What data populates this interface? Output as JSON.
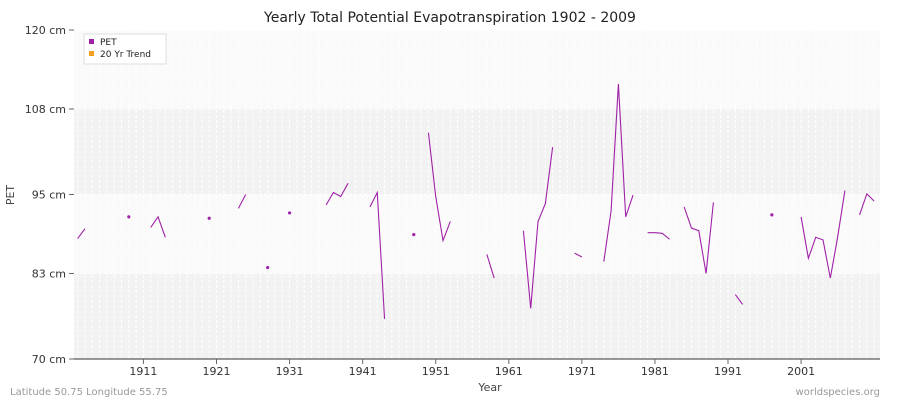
{
  "chart_data": {
    "type": "line",
    "title": "Yearly Total Potential Evapotranspiration 1902 - 2009",
    "xlabel": "Year",
    "ylabel": "PET",
    "xlim": [
      1902,
      2009
    ],
    "ylim": [
      70,
      120
    ],
    "y_ticks": [
      {
        "value": 70,
        "label": "70 cm"
      },
      {
        "value": 83,
        "label": "83 cm"
      },
      {
        "value": 95,
        "label": "95 cm"
      },
      {
        "value": 108,
        "label": "108 cm"
      },
      {
        "value": 120,
        "label": "120 cm"
      }
    ],
    "x_ticks": [
      {
        "value": 1911,
        "label": "1911"
      },
      {
        "value": 1921,
        "label": "1921"
      },
      {
        "value": 1931,
        "label": "1931"
      },
      {
        "value": 1941,
        "label": "1941"
      },
      {
        "value": 1951,
        "label": "1951"
      },
      {
        "value": 1961,
        "label": "1961"
      },
      {
        "value": 1971,
        "label": "1971"
      },
      {
        "value": 1981,
        "label": "1981"
      },
      {
        "value": 1991,
        "label": "1991"
      },
      {
        "value": 2001,
        "label": "2001"
      }
    ],
    "grid": true,
    "legend_position": "top-left",
    "series": [
      {
        "name": "PET",
        "color": "#a020a8",
        "points": [
          [
            1902,
            88.3
          ],
          [
            1903,
            89.8
          ],
          [
            1904,
            null
          ],
          [
            1905,
            null
          ],
          [
            1906,
            null
          ],
          [
            1907,
            null
          ],
          [
            1908,
            null
          ],
          [
            1909,
            91.6
          ],
          [
            1910,
            null
          ],
          [
            1911,
            null
          ],
          [
            1912,
            90.0
          ],
          [
            1913,
            91.6
          ],
          [
            1914,
            88.5
          ],
          [
            1915,
            null
          ],
          [
            1916,
            null
          ],
          [
            1917,
            null
          ],
          [
            1918,
            null
          ],
          [
            1919,
            null
          ],
          [
            1920,
            91.4
          ],
          [
            1921,
            null
          ],
          [
            1922,
            null
          ],
          [
            1923,
            null
          ],
          [
            1924,
            92.9
          ],
          [
            1925,
            95.0
          ],
          [
            1926,
            null
          ],
          [
            1927,
            null
          ],
          [
            1928,
            83.9
          ],
          [
            1929,
            null
          ],
          [
            1930,
            null
          ],
          [
            1931,
            92.2
          ],
          [
            1932,
            null
          ],
          [
            1933,
            null
          ],
          [
            1934,
            null
          ],
          [
            1935,
            null
          ],
          [
            1936,
            93.4
          ],
          [
            1937,
            95.3
          ],
          [
            1938,
            94.7
          ],
          [
            1939,
            96.7
          ],
          [
            1940,
            null
          ],
          [
            1941,
            null
          ],
          [
            1942,
            93.1
          ],
          [
            1943,
            95.3
          ],
          [
            1944,
            76.1
          ],
          [
            1945,
            null
          ],
          [
            1946,
            null
          ],
          [
            1947,
            null
          ],
          [
            1948,
            88.9
          ],
          [
            1949,
            null
          ],
          [
            1950,
            104.4
          ],
          [
            1951,
            94.7
          ],
          [
            1952,
            88.0
          ],
          [
            1953,
            90.9
          ],
          [
            1954,
            null
          ],
          [
            1955,
            null
          ],
          [
            1956,
            null
          ],
          [
            1957,
            null
          ],
          [
            1958,
            85.9
          ],
          [
            1959,
            82.3
          ],
          [
            1960,
            null
          ],
          [
            1961,
            null
          ],
          [
            1962,
            null
          ],
          [
            1963,
            89.5
          ],
          [
            1964,
            77.7
          ],
          [
            1965,
            90.9
          ],
          [
            1966,
            93.6
          ],
          [
            1967,
            102.2
          ],
          [
            1968,
            null
          ],
          [
            1969,
            null
          ],
          [
            1970,
            86.1
          ],
          [
            1971,
            85.5
          ],
          [
            1972,
            null
          ],
          [
            1973,
            null
          ],
          [
            1974,
            84.8
          ],
          [
            1975,
            92.5
          ],
          [
            1976,
            111.8
          ],
          [
            1977,
            91.6
          ],
          [
            1978,
            94.9
          ],
          [
            1979,
            null
          ],
          [
            1980,
            89.2
          ],
          [
            1981,
            89.2
          ],
          [
            1982,
            89.1
          ],
          [
            1983,
            88.2
          ],
          [
            1984,
            null
          ],
          [
            1985,
            93.1
          ],
          [
            1986,
            89.9
          ],
          [
            1987,
            89.5
          ],
          [
            1988,
            83.0
          ],
          [
            1989,
            93.8
          ],
          [
            1990,
            null
          ],
          [
            1991,
            null
          ],
          [
            1992,
            79.8
          ],
          [
            1993,
            78.3
          ],
          [
            1994,
            null
          ],
          [
            1995,
            null
          ],
          [
            1996,
            null
          ],
          [
            1997,
            91.9
          ],
          [
            1998,
            null
          ],
          [
            1999,
            null
          ],
          [
            2000,
            null
          ],
          [
            2001,
            91.6
          ],
          [
            2002,
            85.3
          ],
          [
            2003,
            88.5
          ],
          [
            2004,
            88.1
          ],
          [
            2005,
            82.3
          ],
          [
            2006,
            88.5
          ],
          [
            2007,
            95.6
          ],
          [
            2008,
            null
          ],
          [
            2009,
            91.9
          ],
          [
            2010,
            95.1
          ],
          [
            2011,
            94.0
          ]
        ]
      },
      {
        "name": "20 Yr Trend",
        "color": "#f0a020",
        "points": []
      }
    ]
  },
  "footer": {
    "left": "Latitude 50.75 Longitude 55.75",
    "right": "worldspecies.org"
  }
}
